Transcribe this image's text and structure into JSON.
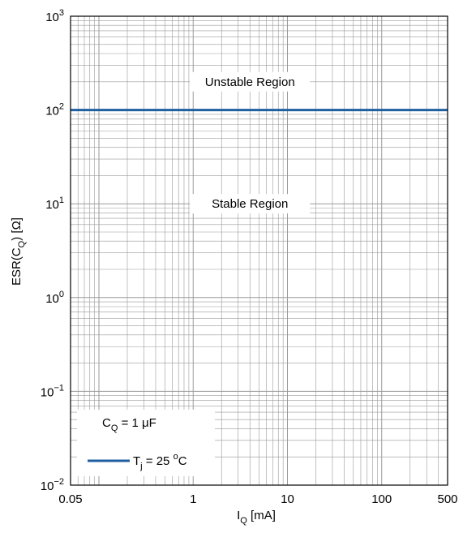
{
  "chart_data": {
    "type": "line",
    "x_scale": "log",
    "y_scale": "log",
    "xlim": [
      0.05,
      500
    ],
    "ylim": [
      0.01,
      1000
    ],
    "grid": true,
    "x_ticks": [
      {
        "value": 0.05,
        "label": "0.05"
      },
      {
        "value": 1,
        "label": "1"
      },
      {
        "value": 10,
        "label": "10"
      },
      {
        "value": 100,
        "label": "100"
      },
      {
        "value": 500,
        "label": "500"
      }
    ],
    "y_ticks": [
      {
        "value": 0.01,
        "base": "10",
        "exp": "−2"
      },
      {
        "value": 0.1,
        "base": "10",
        "exp": "−1"
      },
      {
        "value": 1,
        "base": "10",
        "exp": "0"
      },
      {
        "value": 10,
        "base": "10",
        "exp": "1"
      },
      {
        "value": 100,
        "base": "10",
        "exp": "2"
      },
      {
        "value": 1000,
        "base": "10",
        "exp": "3"
      }
    ],
    "xlabel": {
      "main": "I",
      "sub": "Q",
      "rest": " [mA]"
    },
    "ylabel": {
      "main": "ESR(C",
      "sub": "Q",
      "rest": ") [Ω]"
    },
    "series": [
      {
        "x": [
          0.05,
          500
        ],
        "y": [
          100,
          100
        ],
        "color": "#1f5fa0"
      }
    ],
    "region_labels": [
      {
        "text": "Unstable Region",
        "x": 4,
        "y": 200
      },
      {
        "text": "Stable Region",
        "x": 4,
        "y": 10
      }
    ],
    "legend": {
      "placement": "bottom-left",
      "condition": {
        "main": "C",
        "sub": "Q",
        "rest": " = 1 μF"
      },
      "entry": {
        "main": "T",
        "sub": "j",
        "rest": " = 25 ",
        "sup": "o",
        "unit": "C"
      }
    }
  }
}
